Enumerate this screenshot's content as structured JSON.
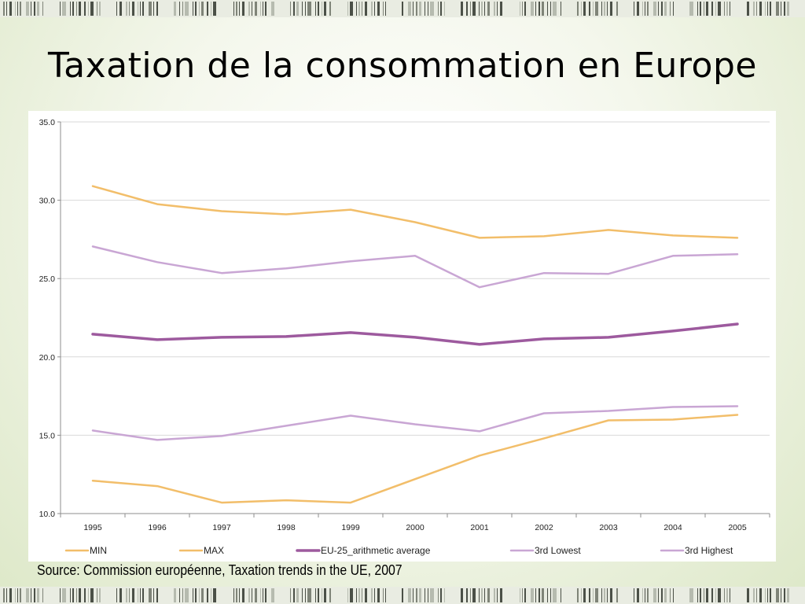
{
  "slide": {
    "title": "Taxation de la consommation en Europe",
    "source": "Source: Commission européenne, Taxation trends in the UE, 2007"
  },
  "chart_data": {
    "type": "line",
    "x": [
      "1995",
      "1996",
      "1997",
      "1998",
      "1999",
      "2000",
      "2001",
      "2002",
      "2003",
      "2004",
      "2005"
    ],
    "ylim": [
      10.0,
      35.0
    ],
    "y_ticks": [
      "10.0",
      "15.0",
      "20.0",
      "25.0",
      "30.0",
      "35.0"
    ],
    "grid": true,
    "legend_position": "bottom",
    "series": [
      {
        "name": "MIN",
        "color": "#f2be6a",
        "values": [
          12.1,
          11.75,
          10.7,
          10.85,
          10.7,
          12.2,
          13.7,
          14.8,
          15.95,
          16.0,
          16.3
        ]
      },
      {
        "name": "MAX",
        "color": "#f2be6a",
        "values": [
          30.9,
          29.75,
          29.3,
          29.1,
          29.4,
          28.6,
          27.6,
          27.7,
          28.1,
          27.75,
          27.6
        ]
      },
      {
        "name": "EU-25_arithmetic average",
        "color": "#9d5a9e",
        "values": [
          21.45,
          21.1,
          21.25,
          21.3,
          21.55,
          21.25,
          20.8,
          21.15,
          21.25,
          21.65,
          22.1
        ]
      },
      {
        "name": "3rd Lowest",
        "color": "#c9a6d4",
        "values": [
          15.3,
          14.7,
          14.95,
          15.6,
          16.25,
          15.7,
          15.25,
          16.4,
          16.55,
          16.8,
          16.85
        ]
      },
      {
        "name": "3rd Highest",
        "color": "#c9a6d4",
        "values": [
          27.05,
          26.05,
          25.35,
          25.65,
          26.1,
          26.45,
          24.45,
          25.35,
          25.3,
          26.45,
          26.55
        ]
      }
    ]
  }
}
